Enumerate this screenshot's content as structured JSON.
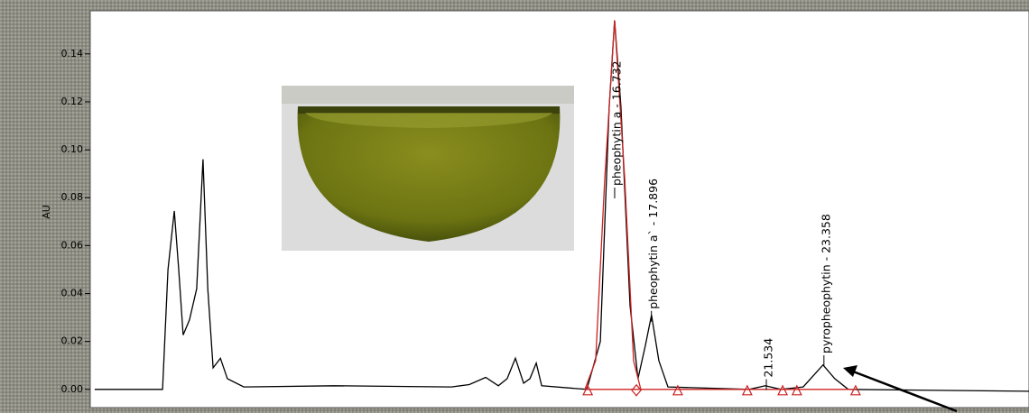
{
  "chart_data": {
    "type": "line",
    "ylabel": "AU",
    "xlim": [
      0.13,
      29.85
    ],
    "ylim": [
      -0.0076,
      0.158
    ],
    "yticks": [
      {
        "value": 0,
        "label": "0.00"
      },
      0.02,
      0.04,
      0.06,
      0.08,
      {
        "value": 0.1,
        "label": "0.10"
      },
      0.12,
      0.14
    ],
    "series": [
      {
        "color": "#000000",
        "x": [
          0.27,
          2.42,
          2.59,
          2.79,
          2.93,
          3.07,
          3.27,
          3.5,
          3.7,
          3.85,
          4.02,
          4.25,
          4.47,
          4.99,
          7.85,
          11.56,
          12.13,
          12.65,
          13.05,
          13.33,
          13.59,
          13.85,
          14.05,
          14.25,
          14.42,
          15.85,
          16.28,
          16.56,
          16.73,
          16.93,
          17.22,
          17.47,
          17.7,
          17.9,
          18.13,
          18.42,
          20.99,
          21.5,
          22.0,
          22.7,
          23.33,
          23.7,
          24.13,
          29.85
        ],
        "values": [
          0,
          0,
          0.05,
          0.0745,
          0.05,
          0.0227,
          0.029,
          0.042,
          0.096,
          0.042,
          0.009,
          0.013,
          0.0045,
          0.001,
          0.0015,
          0.001,
          0.002,
          0.005,
          0.0015,
          0.0045,
          0.013,
          0.0026,
          0.0045,
          0.011,
          0.0015,
          0,
          0.02,
          0.118,
          0.154,
          0.118,
          0.035,
          0.0045,
          0.018,
          0.031,
          0.012,
          0.001,
          0,
          0.0015,
          0,
          0.001,
          0.0102,
          0.0045,
          0,
          -0.0008
        ]
      },
      {
        "color": "#cc2222",
        "x": [
          15.79,
          16.13,
          16.42,
          16.73,
          17.05,
          17.33,
          17.56
        ],
        "values": [
          0,
          0.012,
          0.088,
          0.154,
          0.088,
          0.012,
          0
        ]
      },
      {
        "color": "#cc2222",
        "x": [
          15.85,
          24.36
        ],
        "values": [
          0,
          0
        ]
      }
    ],
    "markers": {
      "color": "#cc2222",
      "x": [
        15.88,
        17.42,
        18.73,
        20.93,
        22.05,
        22.5,
        24.36
      ],
      "shape": [
        "triangle",
        "diamond",
        "triangle",
        "triangle",
        "triangle",
        "triangle",
        "triangle"
      ]
    },
    "annotations": [
      {
        "text": "pheophytin a - 16.732",
        "x": 16.732,
        "y": 0.085
      },
      {
        "text": "pheophytin a` - 17.896",
        "x": 17.896,
        "y": 0.0335
      },
      {
        "text": "21.534",
        "x": 21.534,
        "y": 0.005
      },
      {
        "text": "pyropheophytin - 23.358",
        "x": 23.358,
        "y": 0.015
      }
    ]
  }
}
